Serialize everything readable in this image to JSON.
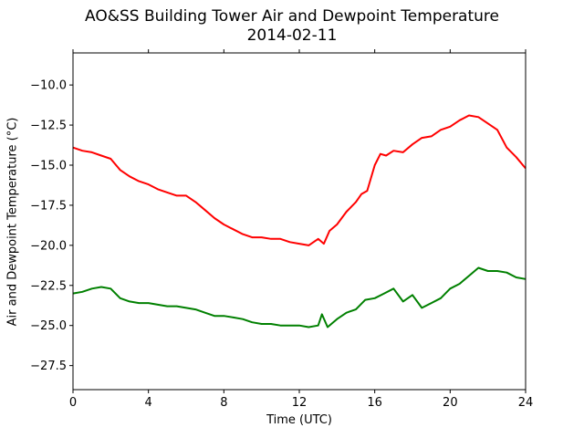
{
  "chart_data": {
    "type": "line",
    "title": "AO&SS Building Tower Air and Dewpoint Temperature",
    "subtitle": "2014-02-11",
    "xlabel": "Time (UTC)",
    "ylabel": "Air and Dewpoint Temperature (°C)",
    "xlim": [
      0,
      24
    ],
    "ylim": [
      -29.0,
      -8.0
    ],
    "xticks": [
      0,
      4,
      8,
      12,
      16,
      20,
      24
    ],
    "yticks": [
      -10.0,
      -12.5,
      -15.0,
      -17.5,
      -20.0,
      -22.5,
      -25.0,
      -27.5
    ],
    "grid": false,
    "series": [
      {
        "color": "#ff0000",
        "x": [
          0,
          0.5,
          1,
          1.5,
          2,
          2.5,
          3,
          3.5,
          4,
          4.5,
          5,
          5.5,
          6,
          6.5,
          7,
          7.5,
          8,
          8.5,
          9,
          9.5,
          10,
          10.5,
          11,
          11.5,
          12,
          12.5,
          13,
          13.3,
          13.6,
          14,
          14.5,
          15,
          15.3,
          15.6,
          16,
          16.3,
          16.6,
          17,
          17.5,
          18,
          18.5,
          19,
          19.5,
          20,
          20.5,
          21,
          21.5,
          22,
          22.5,
          23,
          23.5,
          24
        ],
        "y": [
          -13.9,
          -14.1,
          -14.2,
          -14.4,
          -14.6,
          -15.3,
          -15.7,
          -16.0,
          -16.2,
          -16.5,
          -16.7,
          -16.9,
          -16.9,
          -17.3,
          -17.8,
          -18.3,
          -18.7,
          -19.0,
          -19.3,
          -19.5,
          -19.5,
          -19.6,
          -19.6,
          -19.8,
          -19.9,
          -20.0,
          -19.6,
          -19.9,
          -19.1,
          -18.7,
          -17.9,
          -17.3,
          -16.8,
          -16.6,
          -15.0,
          -14.3,
          -14.4,
          -14.1,
          -14.2,
          -13.7,
          -13.3,
          -13.2,
          -12.8,
          -12.6,
          -12.2,
          -11.9,
          -12.0,
          -12.4,
          -12.8,
          -13.9,
          -14.5,
          -15.2
        ]
      },
      {
        "color": "#008000",
        "x": [
          0,
          0.5,
          1,
          1.5,
          2,
          2.5,
          3,
          3.5,
          4,
          4.5,
          5,
          5.5,
          6,
          6.5,
          7,
          7.5,
          8,
          8.5,
          9,
          9.5,
          10,
          10.5,
          11,
          11.5,
          12,
          12.5,
          13,
          13.2,
          13.5,
          14,
          14.5,
          15,
          15.5,
          16,
          16.5,
          17,
          17.5,
          18,
          18.5,
          19,
          19.5,
          20,
          20.5,
          21,
          21.5,
          22,
          22.5,
          23,
          23.5,
          24
        ],
        "y": [
          -23.0,
          -22.9,
          -22.7,
          -22.6,
          -22.7,
          -23.3,
          -23.5,
          -23.6,
          -23.6,
          -23.7,
          -23.8,
          -23.8,
          -23.9,
          -24.0,
          -24.2,
          -24.4,
          -24.4,
          -24.5,
          -24.6,
          -24.8,
          -24.9,
          -24.9,
          -25.0,
          -25.0,
          -25.0,
          -25.1,
          -25.0,
          -24.3,
          -25.1,
          -24.6,
          -24.2,
          -24.0,
          -23.4,
          -23.3,
          -23.0,
          -22.7,
          -23.5,
          -23.1,
          -23.9,
          -23.6,
          -23.3,
          -22.7,
          -22.4,
          -21.9,
          -21.4,
          -21.6,
          -21.6,
          -21.7,
          -22.0,
          -22.1
        ]
      }
    ]
  }
}
